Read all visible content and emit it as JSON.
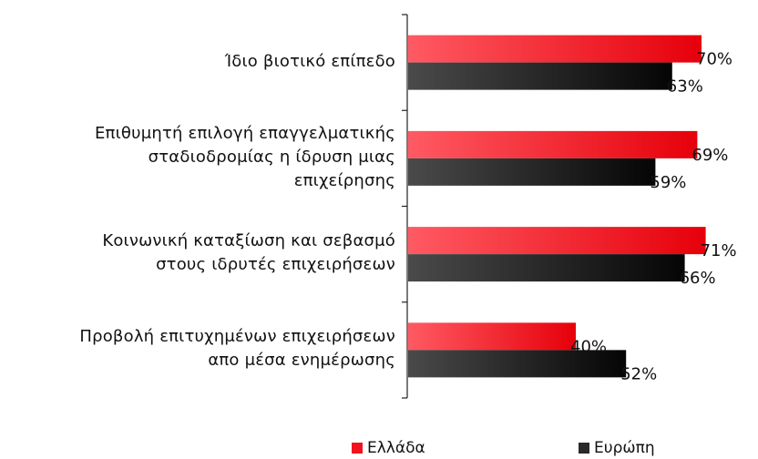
{
  "chart_data": {
    "type": "bar",
    "orientation": "horizontal",
    "categories": [
      [
        "Ίδιο βιοτικό επίπεδο"
      ],
      [
        "Επιθυμητή επιλογή επαγγελματικής",
        "σταδιοδρομίας η ίδρυση μιας",
        "επιχείρησης"
      ],
      [
        "Κοινωνική καταξίωση και σεβασμό",
        "στους ιδρυτές επιχειρήσεων"
      ],
      [
        "Προβολή επιτυχημένων  επιχειρήσεων",
        "απο μέσα ενημέρωσης"
      ]
    ],
    "series": [
      {
        "name": "Ελλάδα",
        "values": [
          70,
          69,
          71,
          40
        ],
        "color": "#f0131e"
      },
      {
        "name": "Ευρώπη",
        "values": [
          63,
          59,
          66,
          52
        ],
        "color": "#2a2a2a"
      }
    ],
    "value_suffix": "%",
    "xlim": [
      0,
      80
    ],
    "grid": false,
    "legend_position": "bottom"
  }
}
